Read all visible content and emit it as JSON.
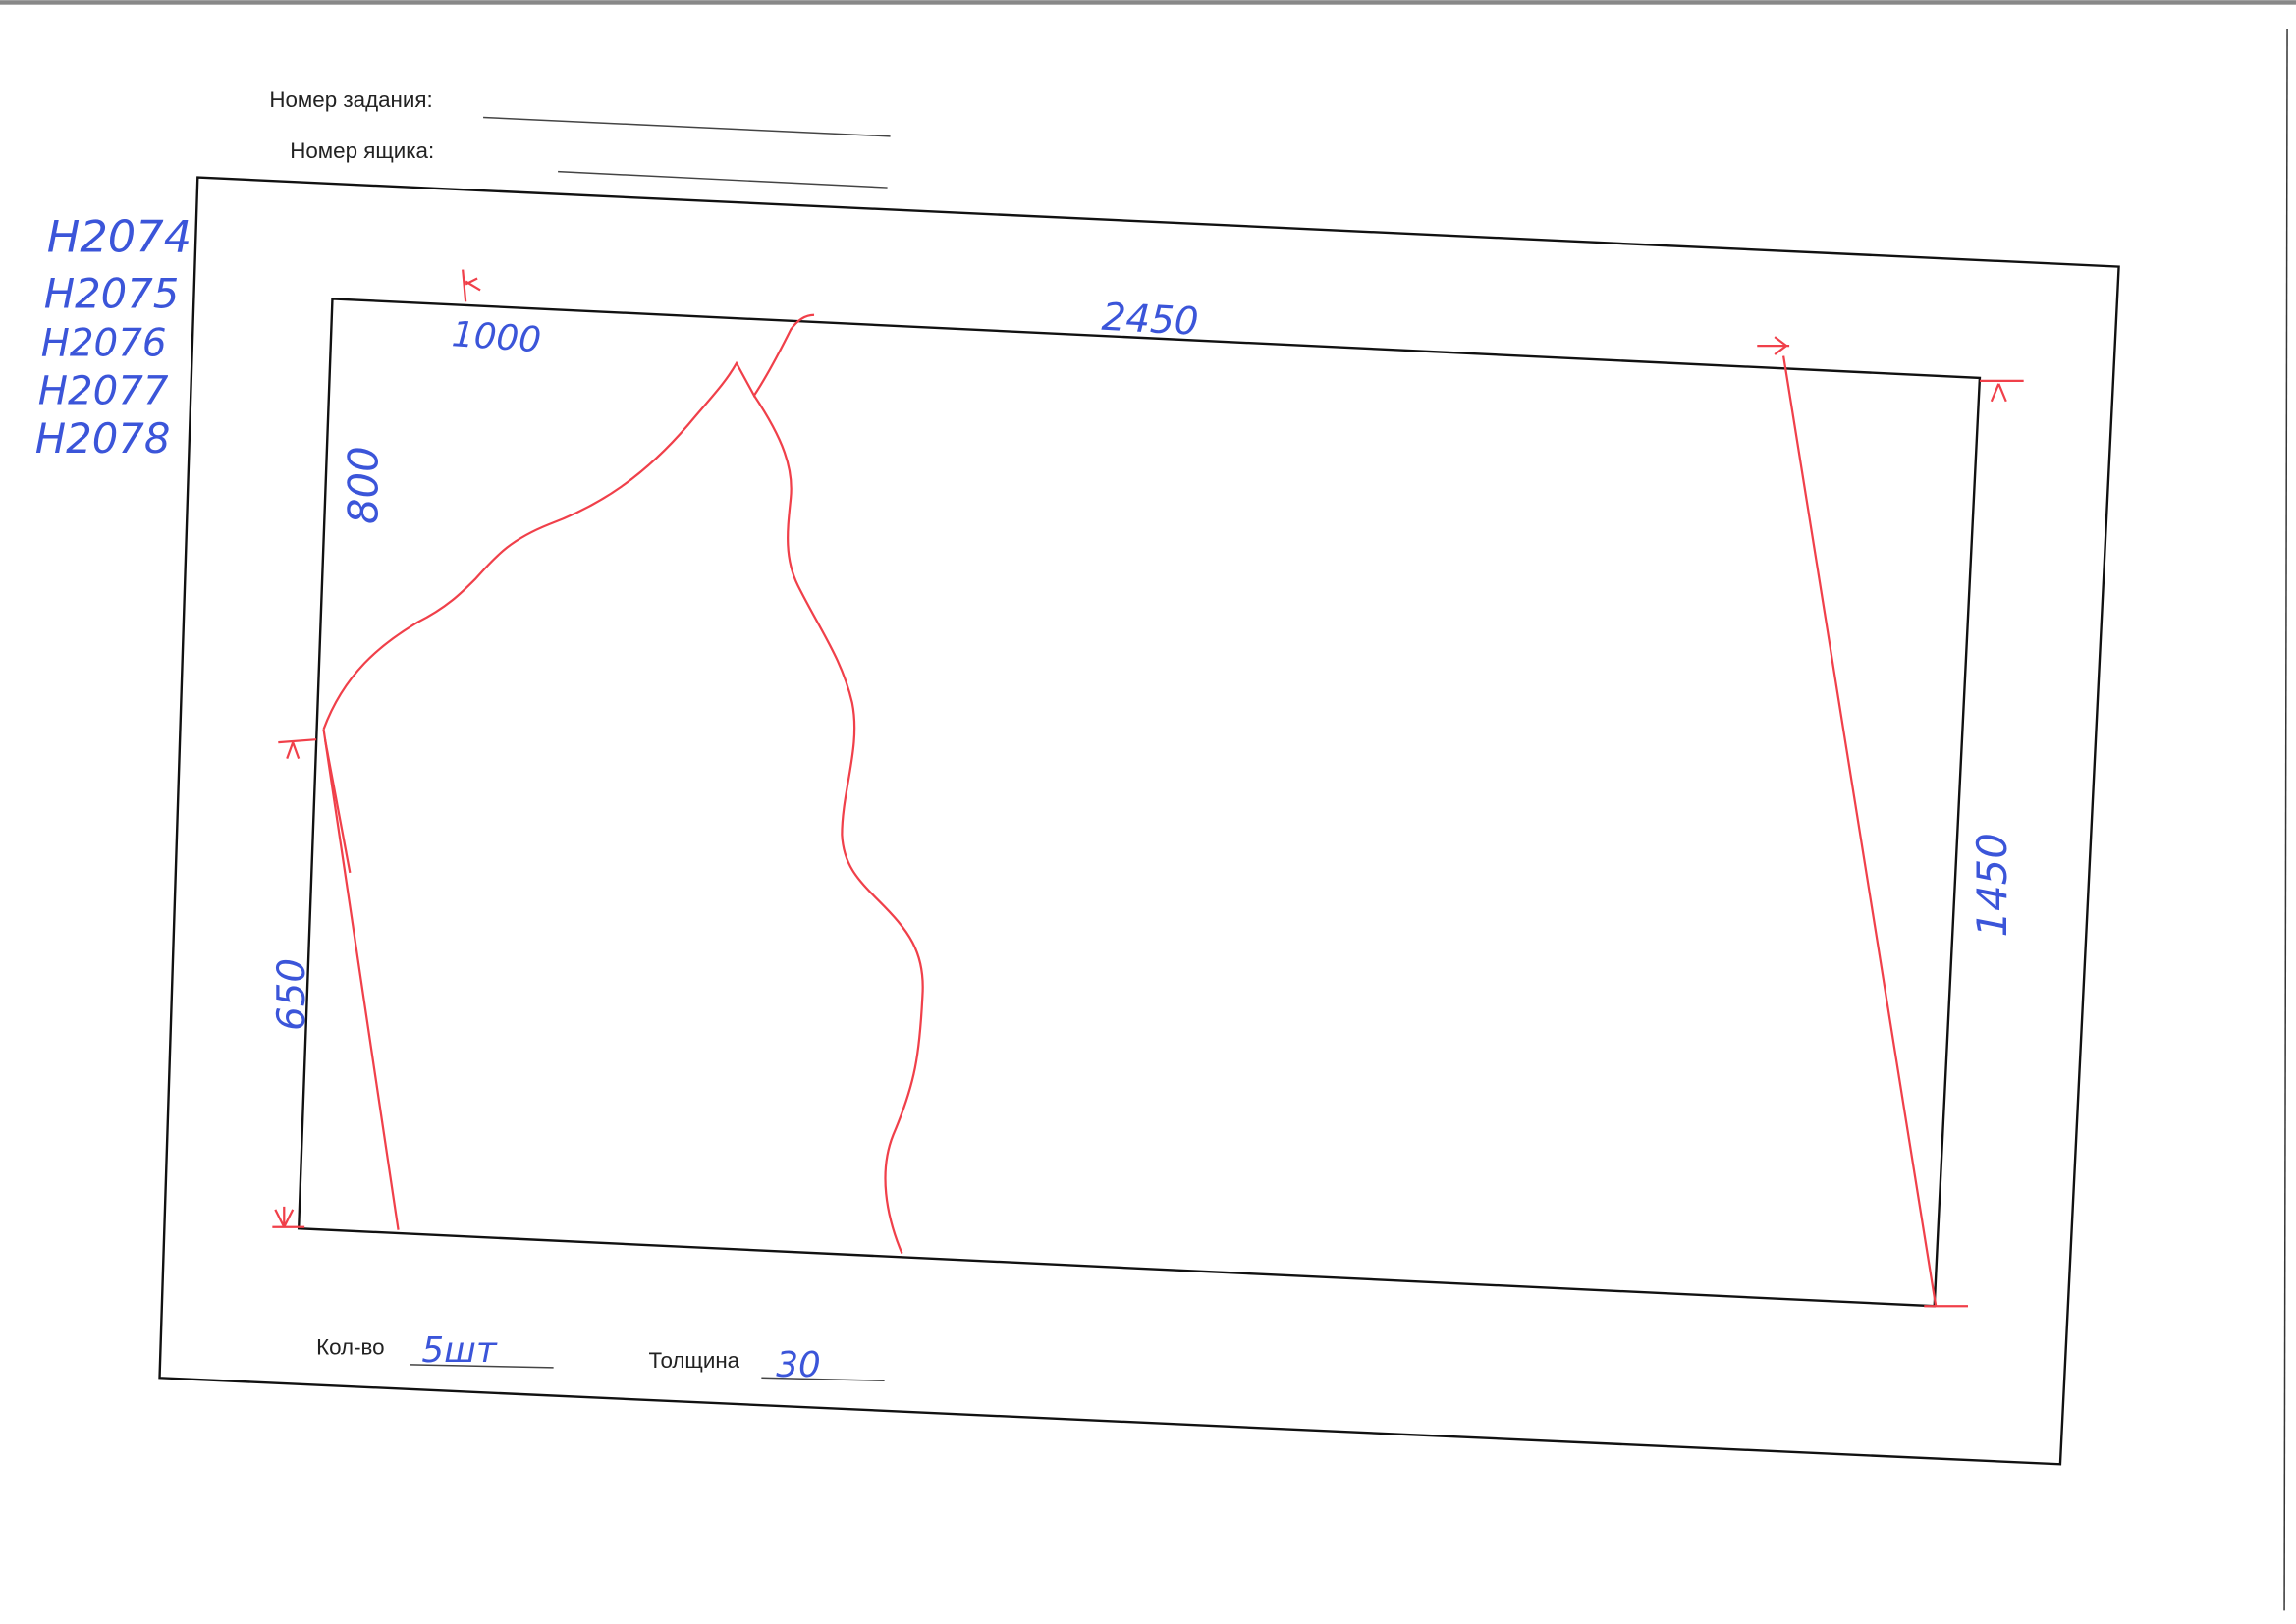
{
  "form": {
    "task_number_label": "Номер задания:",
    "task_number_value": "",
    "box_number_label": "Номер ящика:",
    "box_number_value": "",
    "quantity_label": "Кол-во",
    "quantity_value": "5шт",
    "thickness_label": "Толщина",
    "thickness_value": "30"
  },
  "codes": [
    "H2074",
    "H2075",
    "H2076",
    "H2077",
    "H2078"
  ],
  "dimensions": {
    "top_offset": "1000",
    "top_length": "2450",
    "left_upper": "800",
    "left_lower": "650",
    "right_height": "1450"
  },
  "colors": {
    "ink_blue": "#3b55d9",
    "marker_red": "#f0404a",
    "frame": "#111111"
  }
}
